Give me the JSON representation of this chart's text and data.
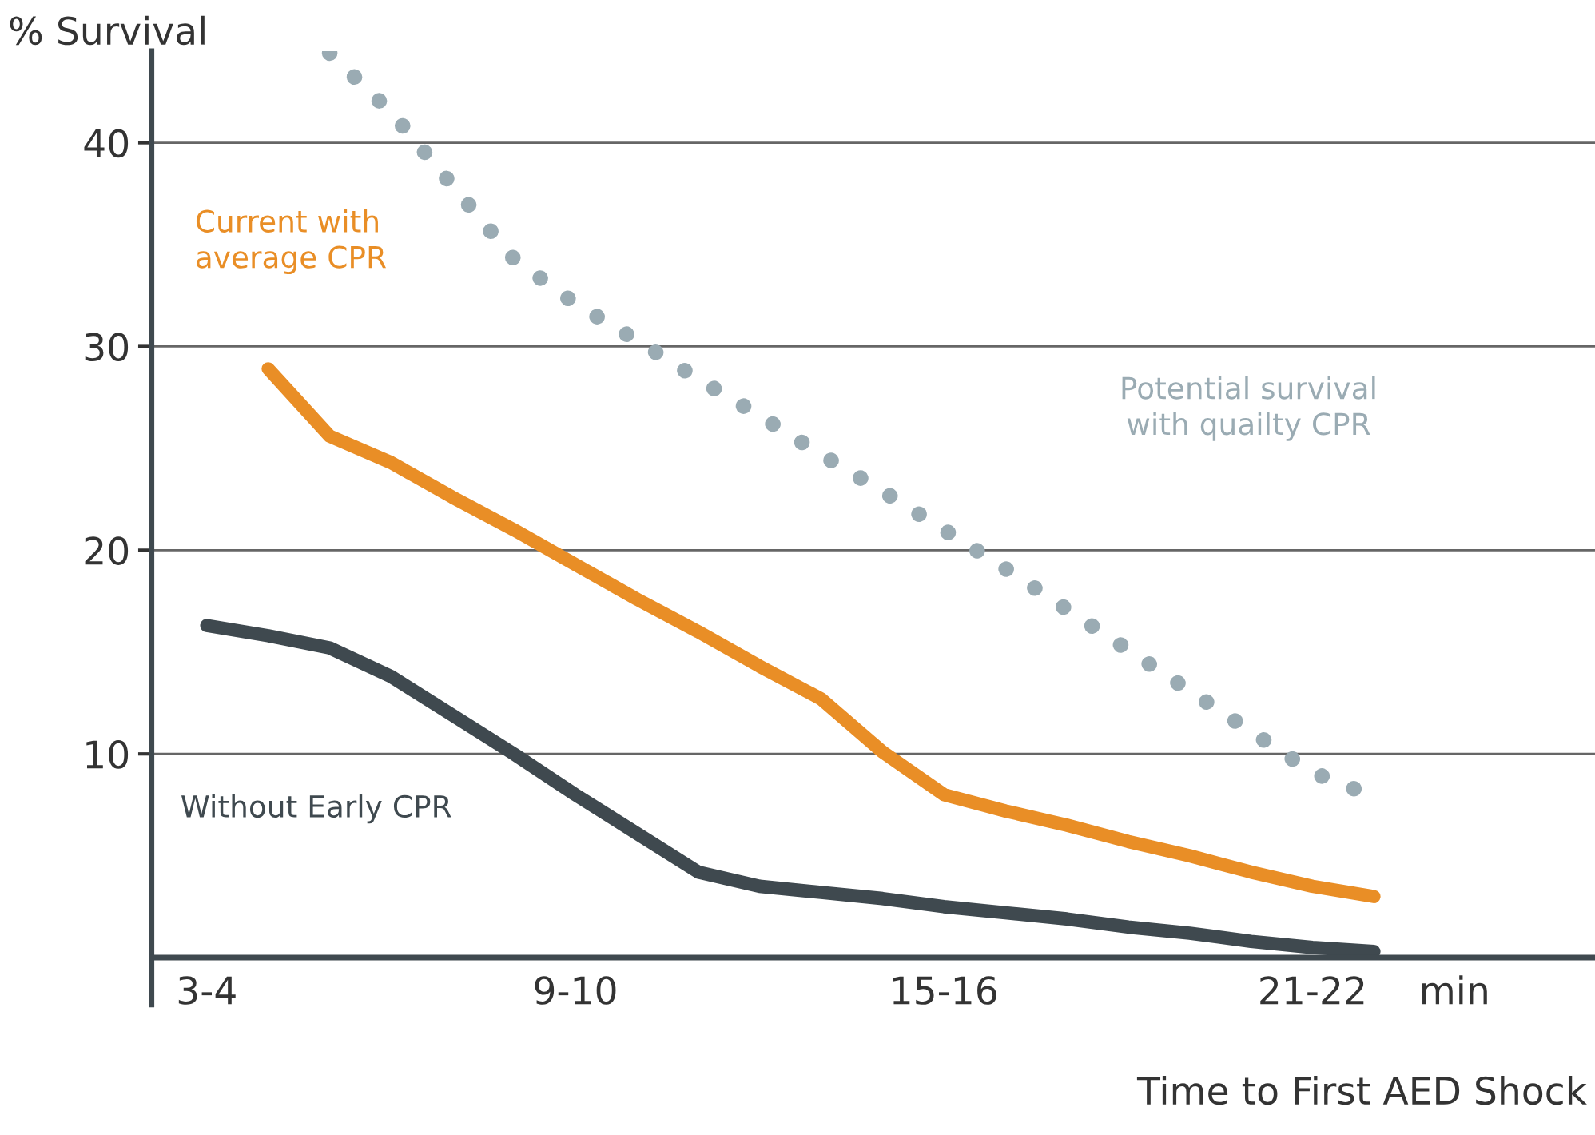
{
  "chart_data": {
    "type": "line",
    "xlabel": "Time to First AED Shock",
    "ylabel": "% Survival",
    "annotations": [
      "min"
    ],
    "categories": [
      "3-4",
      null,
      null,
      null,
      null,
      null,
      "9-10",
      null,
      null,
      null,
      null,
      null,
      "15-16",
      null,
      null,
      null,
      null,
      null,
      "21-22",
      null
    ],
    "ylim": [
      -2.3,
      44.5
    ],
    "yticks": [
      10,
      20,
      30,
      40
    ],
    "grid": "y",
    "legend": false,
    "marker": "none",
    "series": [
      {
        "name": "Without Early CPR",
        "color": "#3f494f",
        "line_style": "solid",
        "values": [
          16.3,
          15.8,
          15.2,
          13.8,
          11.9,
          10.0,
          8.0,
          6.1,
          4.2,
          3.5,
          3.2,
          2.9,
          2.5,
          2.2,
          1.9,
          1.5,
          1.2,
          0.8,
          0.5,
          0.3
        ]
      },
      {
        "name": "Current with\naverage CPR",
        "color": "#e98e26",
        "line_style": "solid",
        "values": [
          null,
          28.9,
          25.6,
          24.3,
          22.6,
          21.0,
          19.3,
          17.6,
          16.0,
          14.3,
          12.7,
          10.1,
          8.0,
          7.2,
          6.5,
          5.7,
          5.0,
          4.2,
          3.5,
          3.0
        ]
      },
      {
        "name": "Potential survival\nwith quailty CPR",
        "color": "#9aabb3",
        "line_style": "dotted",
        "values": [
          null,
          null,
          44.4,
          41.5,
          37.9,
          34.3,
          32.1,
          30.3,
          28.4,
          26.6,
          24.7,
          22.9,
          21.0,
          19.1,
          17.1,
          15.1,
          13.1,
          11.1,
          9.1,
          7.9
        ]
      }
    ]
  }
}
